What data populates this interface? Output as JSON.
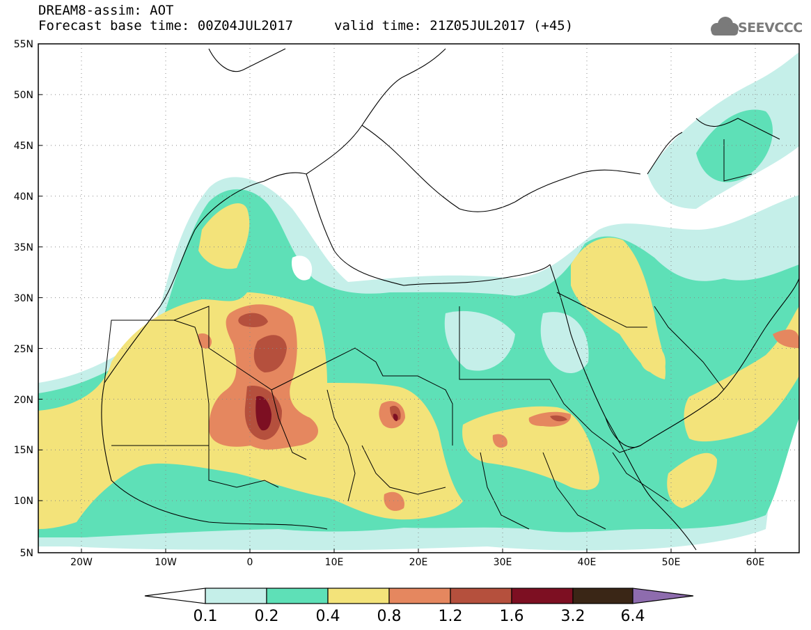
{
  "header": {
    "line1": "DREAM8-assim: AOT",
    "line2": "Forecast base time: 00Z04JUL2017",
    "line3": "valid time: 21Z05JUL2017 (+45)"
  },
  "logo": {
    "text": "SEEVCCC",
    "icon": "cloud-icon"
  },
  "map": {
    "lat_labels": [
      "55N",
      "50N",
      "45N",
      "40N",
      "35N",
      "30N",
      "25N",
      "20N",
      "15N",
      "10N",
      "5N"
    ],
    "lon_labels": [
      "20W",
      "10W",
      "0",
      "10E",
      "20E",
      "30E",
      "40E",
      "50E",
      "60E"
    ]
  },
  "legend": {
    "labels": [
      "0.1",
      "0.2",
      "0.4",
      "0.8",
      "1.2",
      "1.6",
      "3.2",
      "6.4"
    ],
    "colors": [
      "#c5efe9",
      "#5ee0b7",
      "#f3e37a",
      "#e5875f",
      "#b5503d",
      "#7d0f22",
      "#3a2616",
      "#8e6cae"
    ]
  }
}
